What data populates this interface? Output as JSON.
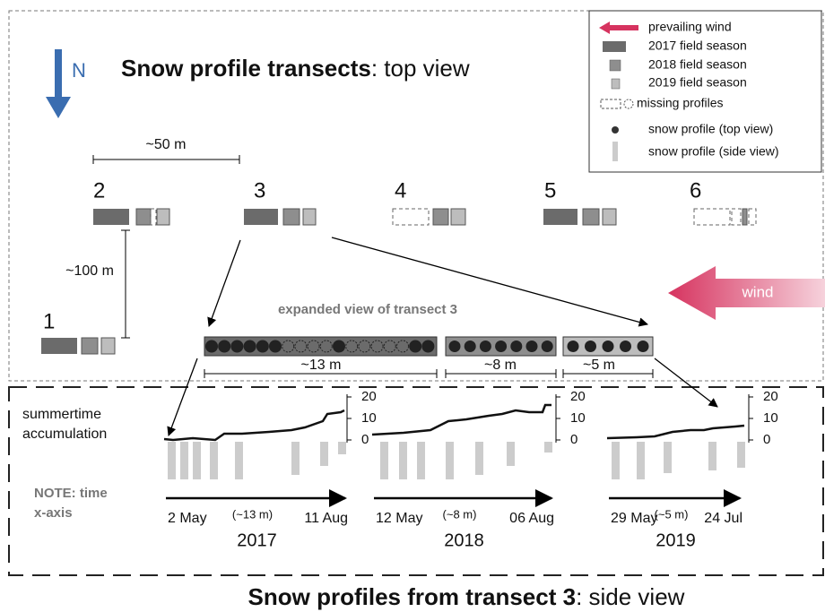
{
  "title": {
    "bold": "Snow profile transects",
    "rest": ": top view"
  },
  "north": "N",
  "legend": [
    "prevailing wind",
    "2017 field season",
    "2018 field season",
    "2019 field season",
    "missing profiles",
    "snow profile (top view)",
    "snow profile (side view)"
  ],
  "scales": {
    "transect_spacing": "~50 m",
    "row_spacing": "~100 m"
  },
  "transects": [
    "1",
    "2",
    "3",
    "4",
    "5",
    "6"
  ],
  "wind": "wind",
  "expanded": {
    "title": "expanded view of transect 3",
    "lengths": [
      "~13 m",
      "~8 m",
      "~5 m"
    ]
  },
  "side": {
    "ylabel": [
      "summertime",
      "accumulation"
    ],
    "note": [
      "NOTE: time",
      "x-axis"
    ],
    "yticks": [
      "20",
      "10",
      "0"
    ],
    "seasons": [
      {
        "start": "2 May",
        "span": "(~13 m)",
        "end": "11 Aug",
        "year": "2017"
      },
      {
        "start": "12 May",
        "span": "(~8 m)",
        "end": "06 Aug",
        "year": "2018"
      },
      {
        "start": "29 May",
        "span": "(~5 m)",
        "end": "24 Jul",
        "year": "2019"
      }
    ]
  },
  "footer": {
    "bold": "Snow profiles from transect 3",
    "rest": ": side view"
  }
}
